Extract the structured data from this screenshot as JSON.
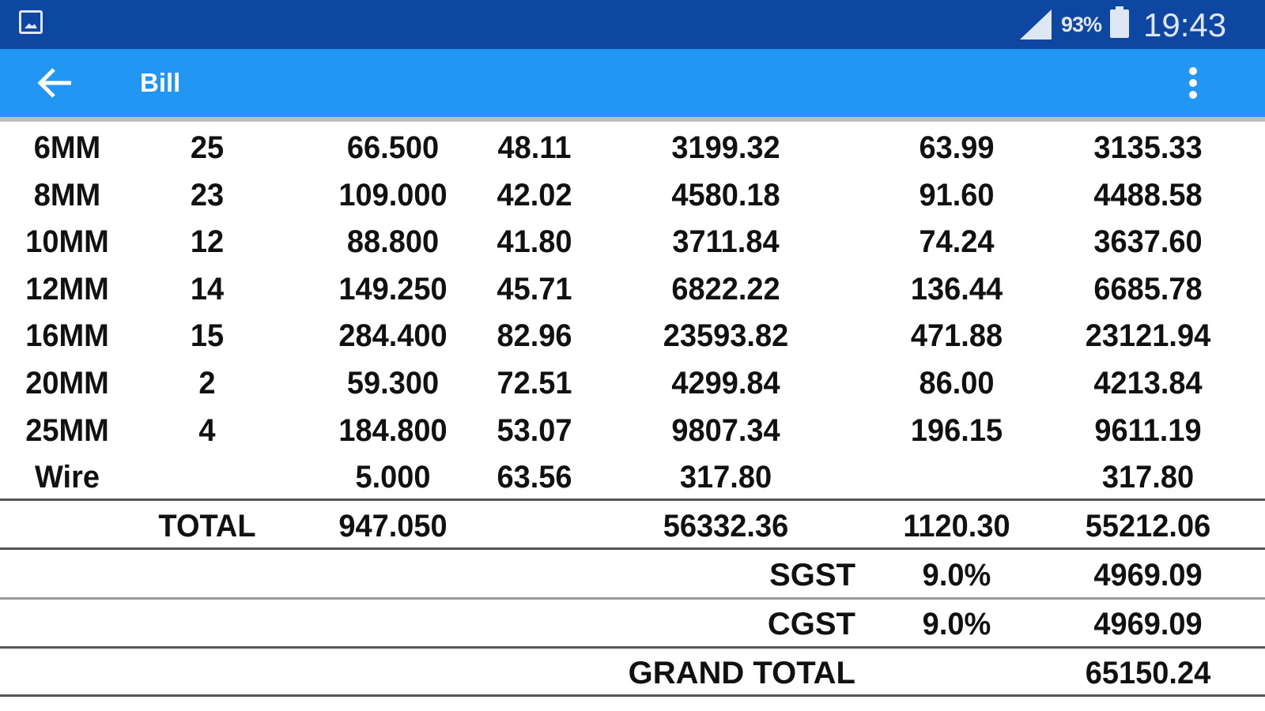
{
  "status_bar": {
    "battery": "93%",
    "time": "19:43"
  },
  "toolbar": {
    "title": "Bill"
  },
  "items": [
    [
      "6MM",
      "25",
      "66.500",
      "48.11",
      "3199.32",
      "63.99",
      "3135.33"
    ],
    [
      "8MM",
      "23",
      "109.000",
      "42.02",
      "4580.18",
      "91.60",
      "4488.58"
    ],
    [
      "10MM",
      "12",
      "88.800",
      "41.80",
      "3711.84",
      "74.24",
      "3637.60"
    ],
    [
      "12MM",
      "14",
      "149.250",
      "45.71",
      "6822.22",
      "136.44",
      "6685.78"
    ],
    [
      "16MM",
      "15",
      "284.400",
      "82.96",
      "23593.82",
      "471.88",
      "23121.94"
    ],
    [
      "20MM",
      "2",
      "59.300",
      "72.51",
      "4299.84",
      "86.00",
      "4213.84"
    ],
    [
      "25MM",
      "4",
      "184.800",
      "53.07",
      "9807.34",
      "196.15",
      "9611.19"
    ],
    [
      "Wire",
      "",
      "5.000",
      "63.56",
      "317.80",
      "",
      "317.80"
    ]
  ],
  "total": {
    "label": "TOTAL",
    "weight": "947.050",
    "amount": "56332.36",
    "discount": "1120.30",
    "net": "55212.06"
  },
  "sgst": {
    "label": "SGST",
    "rate": "9.0%",
    "amount": "4969.09"
  },
  "cgst": {
    "label": "CGST",
    "rate": "9.0%",
    "amount": "4969.09"
  },
  "grand_total": {
    "label": "GRAND TOTAL",
    "amount": "65150.24"
  }
}
